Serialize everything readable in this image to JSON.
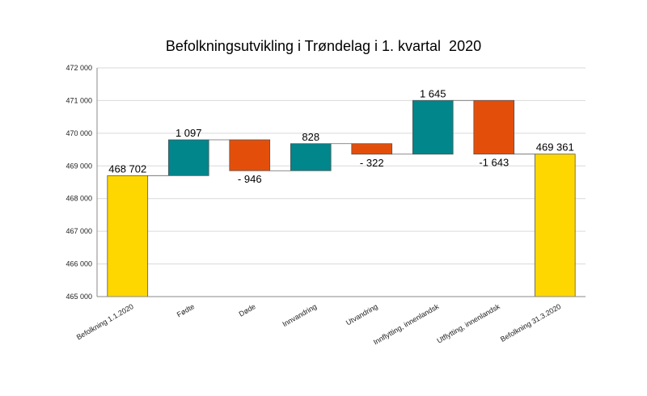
{
  "chart_data": {
    "type": "waterfall",
    "title": "Befolkningsutvikling i Trøndelag i 1. kvartal  2020",
    "xlabel": "",
    "ylabel": "",
    "ylim": [
      465000,
      472000
    ],
    "yticks": [
      465000,
      466000,
      467000,
      468000,
      469000,
      470000,
      471000,
      472000
    ],
    "ytick_labels": [
      "465 000",
      "466 000",
      "467 000",
      "468 000",
      "469 000",
      "470 000",
      "471 000",
      "472 000"
    ],
    "grid": true,
    "legend": "none",
    "categories": [
      "Befolkning 1.1.2020",
      "Fødte",
      "Døde",
      "Innvandring",
      "Utvandring",
      "Innflytting, innenlandsk",
      "Utflytting, innenlandsk",
      "Befolkning 31.3.2020"
    ],
    "values": [
      468702,
      1097,
      -946,
      828,
      -322,
      1645,
      -1643,
      469361
    ],
    "kinds": [
      "total",
      "increase",
      "decrease",
      "increase",
      "decrease",
      "increase",
      "decrease",
      "total"
    ],
    "data_labels": [
      "468 702",
      "1 097",
      "- 946",
      "828",
      "- 322",
      "1 645",
      "-1 643",
      "469 361"
    ],
    "colors": {
      "total": "#FFD700",
      "increase": "#00868B",
      "decrease": "#E34F0B",
      "edge": "#555555",
      "grid": "#D9D9D9"
    }
  }
}
